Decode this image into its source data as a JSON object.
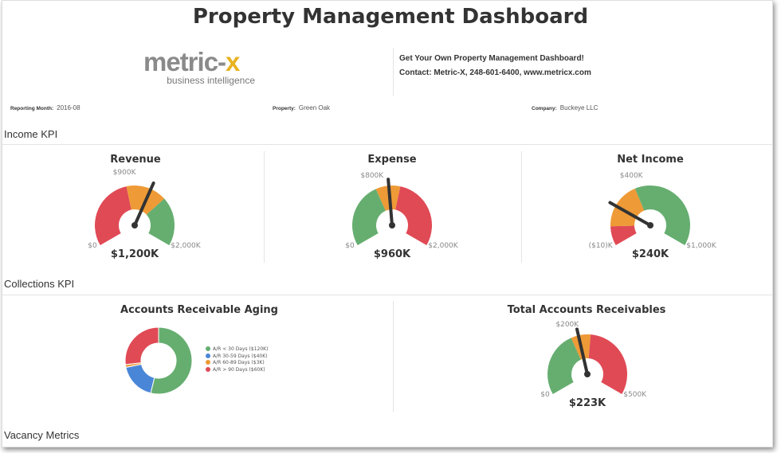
{
  "title": "Property Management Dashboard",
  "logo": {
    "main": "metric-",
    "accent": "x",
    "tagline": "business intelligence"
  },
  "contact": {
    "line1": "Get Your Own Property Management Dashboard!",
    "line2": "Contact: Metric-X, 248-601-6400, www.metricx.com"
  },
  "filters": [
    {
      "label": "Reporting Month:",
      "value": "2016-08"
    },
    {
      "label": "Property:",
      "value": "Green Oak"
    },
    {
      "label": "Company:",
      "value": "Buckeye LLC"
    }
  ],
  "sections": [
    "Income KPI",
    "Collections KPI",
    "Vacancy Metrics"
  ],
  "colors": {
    "red": "#e04a55",
    "orange": "#ee9a36",
    "green": "#66ae70",
    "blue": "#4a86d8",
    "needle": "#333333"
  },
  "gauges": [
    {
      "title": "Revenue",
      "min": 0,
      "max": 2000,
      "value": 1200,
      "value_label": "$1,200K",
      "min_label": "$0",
      "max_label": "$2,000K",
      "threshold_label": "$900K",
      "threshold": 900,
      "bands": [
        {
          "from": 0,
          "to": 900,
          "color": "red"
        },
        {
          "from": 900,
          "to": 1400,
          "color": "orange"
        },
        {
          "from": 1400,
          "to": 2000,
          "color": "green"
        }
      ]
    },
    {
      "title": "Expense",
      "min": 0,
      "max": 2000,
      "value": 960,
      "value_label": "$960K",
      "min_label": "$0",
      "max_label": "$2,000K",
      "threshold_label": "$800K",
      "threshold": 800,
      "bands": [
        {
          "from": 0,
          "to": 800,
          "color": "green"
        },
        {
          "from": 800,
          "to": 1100,
          "color": "orange"
        },
        {
          "from": 1100,
          "to": 2000,
          "color": "red"
        }
      ]
    },
    {
      "title": "Net Income",
      "min": -10,
      "max": 1000,
      "value": 240,
      "value_label": "$240K",
      "min_label": "($10)K",
      "max_label": "$1,000K",
      "threshold_label": "$400K",
      "threshold": 400,
      "bands": [
        {
          "from": -10,
          "to": 110,
          "color": "red"
        },
        {
          "from": 110,
          "to": 400,
          "color": "orange"
        },
        {
          "from": 400,
          "to": 1000,
          "color": "green"
        }
      ]
    },
    {
      "title": "Total Accounts Receivables",
      "min": 0,
      "max": 500,
      "value": 223,
      "value_label": "$223K",
      "min_label": "$0",
      "max_label": "$500K",
      "threshold_label": "$200K",
      "threshold": 200,
      "bands": [
        {
          "from": 0,
          "to": 200,
          "color": "green"
        },
        {
          "from": 200,
          "to": 260,
          "color": "orange"
        },
        {
          "from": 260,
          "to": 500,
          "color": "red"
        }
      ]
    }
  ],
  "aging": {
    "title": "Accounts Receivable Aging",
    "items": [
      {
        "label": "A/R < 30 Days ($120K)",
        "value": 120,
        "color": "green"
      },
      {
        "label": "A/R 30-59 Days ($40K)",
        "value": 40,
        "color": "blue"
      },
      {
        "label": "A/R 60-89 Days ($3K)",
        "value": 3,
        "color": "orange"
      },
      {
        "label": "A/R > 90 Days ($60K)",
        "value": 60,
        "color": "red"
      }
    ]
  }
}
